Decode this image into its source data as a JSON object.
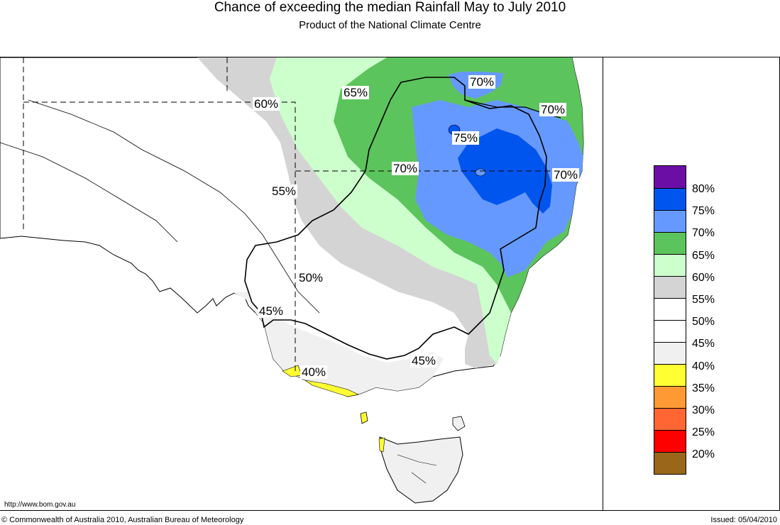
{
  "title": "Chance of exceeding the median Rainfall May to July 2010",
  "subtitle": "Product of the National Climate Centre",
  "map_labels": [
    "60%",
    "65%",
    "70%",
    "70%",
    "75%",
    "70%",
    "70%",
    "55%",
    "50%",
    "45%",
    "40%",
    "45%"
  ],
  "legend": {
    "colors": [
      "#6a0ea6",
      "#0055ee",
      "#6699ff",
      "#5cc45c",
      "#ccffcc",
      "#d4d4d4",
      "#ffffff",
      "#ffffff",
      "#f0f0f0",
      "#ffff33",
      "#ff9933",
      "#ff6633",
      "#ff0000",
      "#99661a"
    ],
    "labels": [
      "80%",
      "75%",
      "70%",
      "65%",
      "60%",
      "55%",
      "50%",
      "45%",
      "40%",
      "35%",
      "30%",
      "25%",
      "20%"
    ]
  },
  "footer": {
    "url": "http://www.bom.gov.au",
    "copyright": "© Commonwealth of Australia 2010, Australian Bureau of Meteorology",
    "issued": "Issued: 05/04/2010"
  }
}
